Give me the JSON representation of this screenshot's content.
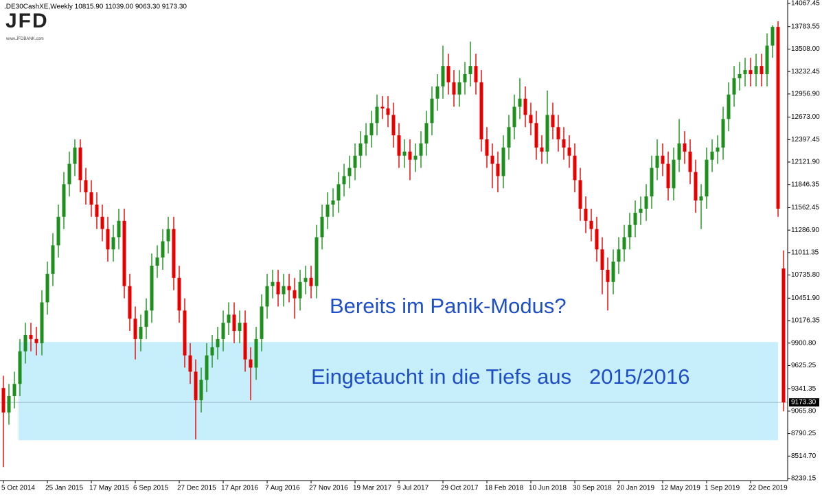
{
  "chart_data": {
    "type": "candlestick",
    "header": ".DE30CashXE,Weekly  10815.90 11039.00 9063.30 9173.30",
    "logo": "JFD",
    "logo_sub": "www.JFDBANK.com",
    "annotations": [
      "Bereits im Panik-Modus?",
      "Eingetaucht in die Tiefs aus   2015/2016"
    ],
    "up_color": "#1f8f1f",
    "down_color": "#e60000",
    "zone": {
      "low": 8709,
      "high": 9914,
      "color": "#c6eefb"
    },
    "last_price": {
      "value": 9173.3,
      "label": "9173.30"
    },
    "ylim": [
      8214,
      14093
    ],
    "yticks": [
      14067.45,
      13783.55,
      {
        "value": 13508,
        "label": "13508.00"
      },
      13232.45,
      {
        "value": 12956.9,
        "label": "12956.90"
      },
      {
        "value": 12673,
        "label": "12673.00"
      },
      12397.45,
      {
        "value": 12121.9,
        "label": "12121.90"
      },
      11846.35,
      11562.45,
      {
        "value": 11286.9,
        "label": "11286.90"
      },
      11011.35,
      {
        "value": 10735.8,
        "label": "10735.80"
      },
      {
        "value": 10451.9,
        "label": "10451.90"
      },
      10176.35,
      {
        "value": 9900.8,
        "label": "9900.80"
      },
      9625.25,
      9341.35,
      {
        "value": 9065.8,
        "label": "9065.80"
      },
      8790.25,
      {
        "value": 8514.7,
        "label": "8514.70"
      },
      8239.15
    ],
    "categories": [
      "5 Oct 2014",
      null,
      null,
      null,
      null,
      null,
      null,
      null,
      "25 Jan 2015",
      null,
      null,
      null,
      null,
      null,
      null,
      null,
      "17 May 2015",
      null,
      null,
      null,
      null,
      null,
      null,
      null,
      "6 Sep 2015",
      null,
      null,
      null,
      null,
      null,
      null,
      null,
      "27 Dec 2015",
      null,
      null,
      null,
      null,
      null,
      null,
      null,
      "17 Apr 2016",
      null,
      null,
      null,
      null,
      null,
      null,
      null,
      "7 Aug 2016",
      null,
      null,
      null,
      null,
      null,
      null,
      null,
      "27 Nov 2016",
      null,
      null,
      null,
      null,
      null,
      null,
      null,
      "19 Mar 2017",
      null,
      null,
      null,
      null,
      null,
      null,
      null,
      "9 Jul 2017",
      null,
      null,
      null,
      null,
      null,
      null,
      null,
      "29 Oct 2017",
      null,
      null,
      null,
      null,
      null,
      null,
      null,
      "18 Feb 2018",
      null,
      null,
      null,
      null,
      null,
      null,
      null,
      "10 Jun 2018",
      null,
      null,
      null,
      null,
      null,
      null,
      null,
      "30 Sep 2018",
      null,
      null,
      null,
      null,
      null,
      null,
      null,
      "20 Jan 2019",
      null,
      null,
      null,
      null,
      null,
      null,
      null,
      "12 May 2019",
      null,
      null,
      null,
      null,
      null,
      null,
      null,
      "1 Sep 2019",
      null,
      null,
      null,
      null,
      null,
      null,
      null,
      "22 Dec 2019",
      null,
      null,
      null,
      null,
      null,
      null
    ],
    "open": [
      9350,
      9050,
      9250,
      9400,
      9800,
      10000,
      9950,
      9900,
      10400,
      10750,
      11100,
      11450,
      11850,
      12100,
      12300,
      11900,
      11750,
      11600,
      11450,
      11300,
      11050,
      11200,
      11400,
      10600,
      10200,
      9950,
      10100,
      10300,
      10850,
      10950,
      11150,
      11300,
      10700,
      10300,
      9750,
      9550,
      9200,
      9450,
      9750,
      9850,
      9950,
      10150,
      10250,
      10050,
      10150,
      9700,
      9600,
      9950,
      10350,
      10600,
      10650,
      10500,
      10600,
      10550,
      10450,
      10650,
      10700,
      10600,
      11200,
      11450,
      11600,
      11650,
      11850,
      11950,
      12050,
      12200,
      12350,
      12450,
      12600,
      12800,
      12780,
      12700,
      12450,
      12200,
      12250,
      12150,
      12200,
      12350,
      12600,
      12900,
      13050,
      13300,
      13100,
      12950,
      13100,
      13200,
      13300,
      13100,
      12400,
      12200,
      12100,
      11950,
      12300,
      12550,
      12800,
      12900,
      12700,
      12600,
      12300,
      12250,
      12700,
      12550,
      12400,
      12300,
      12200,
      11900,
      11550,
      11400,
      11300,
      11050,
      10800,
      10650,
      10900,
      11050,
      11200,
      11350,
      11500,
      11550,
      11700,
      12050,
      12200,
      12100,
      11800,
      12150,
      12350,
      12250,
      12000,
      11650,
      11700,
      12150,
      12250,
      12300,
      12650,
      12950,
      13150,
      13200,
      13250,
      13200,
      13300,
      13200,
      13550,
      13780,
      10815.9
    ],
    "high": [
      9500,
      9400,
      9550,
      9950,
      10150,
      10150,
      10100,
      10550,
      10900,
      11250,
      11600,
      12000,
      12250,
      12400,
      12400,
      12050,
      11900,
      11750,
      11600,
      11450,
      11350,
      11550,
      11550,
      10750,
      10350,
      10250,
      10450,
      11000,
      11100,
      11300,
      11450,
      11450,
      10850,
      10450,
      9900,
      9700,
      9600,
      9900,
      10000,
      10100,
      10300,
      10400,
      10400,
      10300,
      10300,
      9850,
      10100,
      10500,
      10750,
      10800,
      10800,
      10750,
      10750,
      10700,
      10800,
      10850,
      10850,
      11350,
      11600,
      11750,
      11800,
      12000,
      12100,
      12200,
      12350,
      12500,
      12600,
      12750,
      12950,
      12930,
      12930,
      12850,
      12600,
      12400,
      12400,
      12350,
      12500,
      12750,
      13050,
      13200,
      13550,
      13450,
      13250,
      13250,
      13350,
      13600,
      13450,
      13250,
      12550,
      12350,
      12250,
      12450,
      12700,
      12950,
      13150,
      13050,
      12850,
      12750,
      12450,
      13000,
      12850,
      12700,
      12550,
      12450,
      12350,
      12050,
      11700,
      11550,
      11450,
      11200,
      10950,
      11050,
      11200,
      11350,
      11500,
      11650,
      11700,
      11850,
      12200,
      12400,
      12350,
      12250,
      12300,
      12650,
      12500,
      12400,
      12150,
      11850,
      12300,
      12400,
      12450,
      12800,
      13100,
      13300,
      13350,
      13400,
      13400,
      13450,
      13450,
      13700,
      13800,
      13850,
      11039
    ],
    "low": [
      8380,
      8900,
      9100,
      9250,
      9650,
      9800,
      9750,
      9750,
      10250,
      10600,
      10950,
      11300,
      11700,
      11950,
      11750,
      11600,
      11450,
      11300,
      11150,
      10900,
      10900,
      11050,
      10450,
      10050,
      9700,
      9800,
      9950,
      10150,
      10700,
      10800,
      11000,
      10550,
      10150,
      9600,
      9400,
      8720,
      9050,
      9300,
      9600,
      9700,
      9800,
      10000,
      9900,
      9900,
      9550,
      9200,
      9450,
      9800,
      10200,
      10450,
      10350,
      10350,
      10400,
      10200,
      10300,
      10500,
      10450,
      10450,
      11050,
      11300,
      11450,
      11500,
      11700,
      11800,
      11900,
      12050,
      12200,
      12300,
      12450,
      12650,
      12550,
      12300,
      12050,
      12050,
      11900,
      12000,
      12050,
      12200,
      12450,
      12750,
      12900,
      12950,
      12800,
      12800,
      12950,
      13050,
      12950,
      12250,
      12050,
      11800,
      11750,
      11800,
      12150,
      12400,
      12650,
      12550,
      12450,
      12150,
      12100,
      12100,
      12400,
      12250,
      12150,
      12050,
      11750,
      11400,
      11250,
      11150,
      10900,
      10500,
      10300,
      10500,
      10750,
      10900,
      11050,
      11200,
      11350,
      11400,
      11550,
      11900,
      11950,
      11650,
      11650,
      12000,
      12100,
      11850,
      11500,
      11300,
      11550,
      12000,
      12100,
      12150,
      12500,
      12800,
      13000,
      13050,
      13050,
      13050,
      13050,
      13050,
      13400,
      11450,
      9063.3
    ],
    "close": [
      9050,
      9250,
      9400,
      9800,
      10000,
      9950,
      9900,
      10400,
      10750,
      11100,
      11450,
      11850,
      12100,
      12300,
      11900,
      11750,
      11600,
      11450,
      11300,
      11050,
      11200,
      11400,
      10600,
      10200,
      9950,
      10100,
      10300,
      10850,
      10950,
      11150,
      11300,
      10700,
      10300,
      9750,
      9550,
      9200,
      9450,
      9750,
      9850,
      9950,
      10150,
      10250,
      10050,
      10150,
      9700,
      9600,
      9950,
      10350,
      10600,
      10650,
      10500,
      10600,
      10550,
      10450,
      10650,
      10700,
      10600,
      11200,
      11450,
      11600,
      11650,
      11850,
      11950,
      12050,
      12200,
      12350,
      12450,
      12600,
      12800,
      12780,
      12700,
      12450,
      12200,
      12250,
      12150,
      12200,
      12350,
      12600,
      12900,
      13050,
      13300,
      13100,
      12950,
      13100,
      13200,
      13300,
      13100,
      12400,
      12200,
      12100,
      11950,
      12300,
      12550,
      12800,
      12900,
      12700,
      12600,
      12300,
      12250,
      12700,
      12550,
      12400,
      12300,
      12200,
      11900,
      11550,
      11400,
      11300,
      11050,
      10800,
      10650,
      10900,
      11050,
      11200,
      11350,
      11500,
      11550,
      11700,
      12050,
      12200,
      12100,
      11800,
      12150,
      12350,
      12250,
      12000,
      11650,
      11700,
      12150,
      12250,
      12300,
      12650,
      12950,
      13150,
      13200,
      13250,
      13200,
      13300,
      13200,
      13550,
      13780,
      11550,
      9173.3
    ]
  }
}
